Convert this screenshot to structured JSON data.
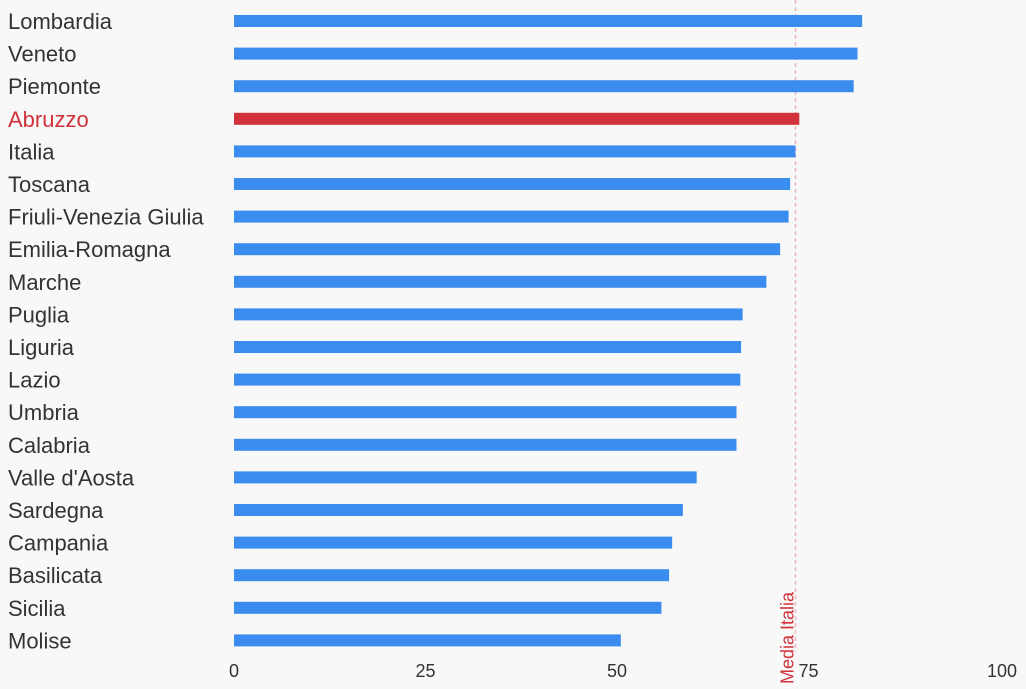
{
  "chart_data": {
    "type": "bar",
    "orientation": "horizontal",
    "categories": [
      "Lombardia",
      "Veneto",
      "Piemonte",
      "Abruzzo",
      "Italia",
      "Toscana",
      "Friuli-Venezia Giulia",
      "Emilia-Romagna",
      "Marche",
      "Puglia",
      "Liguria",
      "Lazio",
      "Umbria",
      "Calabria",
      "Valle d'Aosta",
      "Sardegna",
      "Campania",
      "Basilicata",
      "Sicilia",
      "Molise"
    ],
    "values": [
      82.0,
      81.4,
      80.9,
      73.8,
      73.3,
      72.6,
      72.4,
      71.3,
      69.5,
      66.4,
      66.2,
      66.1,
      65.6,
      65.6,
      60.4,
      58.6,
      57.2,
      56.8,
      55.8,
      50.5
    ],
    "highlight": "Abruzzo",
    "xlim": [
      0,
      100
    ],
    "xticks": [
      0,
      25,
      50,
      75,
      100
    ],
    "reference_line": {
      "value": 73.3,
      "label": "Media Italia"
    },
    "grid": false,
    "colors": {
      "bar": "#3a8dee",
      "highlight": "#d0313a",
      "reference": "#f2b6c0",
      "reference_text": "#d0313a",
      "text": "#333333"
    }
  }
}
